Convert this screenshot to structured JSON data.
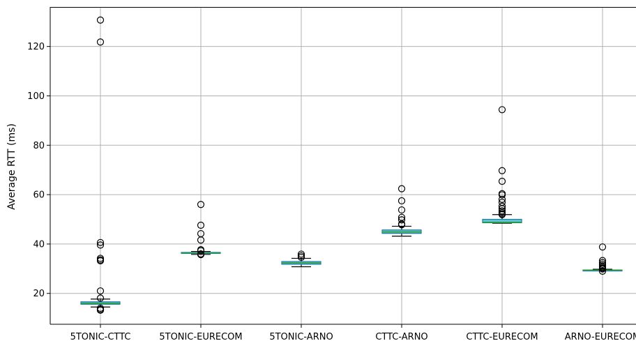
{
  "chart_data": {
    "type": "box",
    "title": "",
    "xlabel": "",
    "ylabel": "Average RTT (ms)",
    "ylim": [
      7.5,
      136
    ],
    "yticks": [
      20,
      40,
      60,
      80,
      100,
      120
    ],
    "ytick_labels": [
      "20",
      "40",
      "60",
      "80",
      "100",
      "120"
    ],
    "grid": true,
    "categories": [
      "5TONIC-CTTC",
      "5TONIC-EURECOM",
      "5TONIC-ARNO",
      "CTTC-ARNO",
      "CTTC-EURECOM",
      "ARNO-EURECOM"
    ],
    "boxes": [
      {
        "whisker_low": 14.5,
        "q1": 15.6,
        "median": 16.0,
        "q3": 16.6,
        "whisker_high": 17.7,
        "outliers": [
          130.7,
          121.8,
          40.6,
          39.6,
          34.2,
          33.6,
          33.2,
          21.0,
          18.1,
          14.0,
          13.5,
          13.2
        ]
      },
      {
        "whisker_low": 35.8,
        "q1": 36.2,
        "median": 36.4,
        "q3": 36.6,
        "whisker_high": 37.0,
        "outliers": [
          56.0,
          47.6,
          44.2,
          41.6,
          37.7,
          37.3,
          36.0,
          35.7
        ]
      },
      {
        "whisker_low": 30.8,
        "q1": 31.8,
        "median": 32.3,
        "q3": 32.9,
        "whisker_high": 34.2,
        "outliers": [
          35.9,
          35.2,
          34.6
        ]
      },
      {
        "whisker_low": 43.2,
        "q1": 44.3,
        "median": 44.9,
        "q3": 45.7,
        "whisker_high": 47.2,
        "outliers": [
          62.4,
          57.5,
          53.8,
          50.8,
          49.8,
          48.1,
          47.8
        ]
      },
      {
        "whisker_low": 48.4,
        "q1": 48.6,
        "median": 48.8,
        "q3": 50.0,
        "whisker_high": 51.9,
        "outliers": [
          94.4,
          69.7,
          65.4,
          60.4,
          59.9,
          58.1,
          56.9,
          55.3,
          54.3,
          53.4,
          52.7,
          52.2,
          51.9
        ]
      },
      {
        "whisker_low": 29.2,
        "q1": 29.3,
        "median": 29.4,
        "q3": 29.5,
        "whisker_high": 29.8,
        "outliers": [
          38.8,
          33.3,
          32.5,
          31.8,
          31.2,
          30.6,
          30.2,
          29.9,
          29.0
        ]
      }
    ],
    "colors": {
      "box_edge": "#1f77b4",
      "box_fill": "#5ec7c7",
      "median": "#2ca02c",
      "whisker": "#000000",
      "outlier": "#000000",
      "grid": "#b0b0b0",
      "axis": "#000000"
    }
  }
}
